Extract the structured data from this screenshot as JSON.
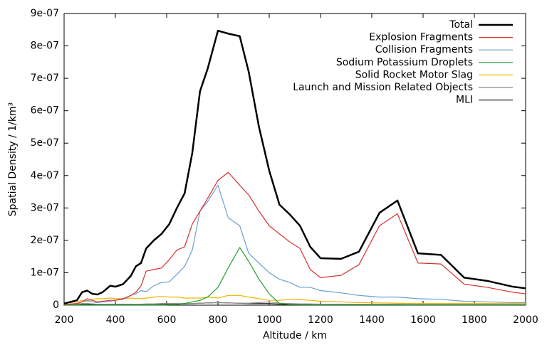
{
  "chart_data": {
    "type": "line",
    "xlabel": "Altitude / km",
    "ylabel": "Spatial Density / 1/km³",
    "x": [
      200,
      250,
      270,
      290,
      310,
      330,
      350,
      380,
      400,
      430,
      460,
      480,
      500,
      520,
      550,
      580,
      610,
      640,
      670,
      700,
      730,
      760,
      800,
      840,
      885,
      920,
      960,
      1000,
      1040,
      1080,
      1120,
      1160,
      1200,
      1280,
      1350,
      1430,
      1500,
      1580,
      1670,
      1760,
      1850,
      1950,
      2000
    ],
    "xlim": [
      200,
      2000
    ],
    "xticks": [
      200,
      400,
      600,
      800,
      1000,
      1200,
      1400,
      1600,
      1800,
      2000
    ],
    "ylim": [
      0,
      9e-07
    ],
    "yticks": [
      0,
      {
        "value": 1e-07,
        "label": "1e-07"
      },
      {
        "value": 2e-07,
        "label": "2e-07"
      },
      {
        "value": 3e-07,
        "label": "3e-07"
      },
      {
        "value": 4e-07,
        "label": "4e-07"
      },
      {
        "value": 5e-07,
        "label": "5e-07"
      },
      {
        "value": 6e-07,
        "label": "6e-07"
      },
      {
        "value": 7e-07,
        "label": "7e-07"
      },
      {
        "value": 8e-07,
        "label": "8e-07"
      },
      {
        "value": 9e-07,
        "label": "9e-07"
      }
    ],
    "legend": "top-right",
    "series": [
      {
        "name": "Total",
        "color": "#000000",
        "line_width": 2.5,
        "values": [
          5e-09,
          1.5e-08,
          4e-08,
          4.5e-08,
          3.5e-08,
          3.3e-08,
          4e-08,
          6e-08,
          5.7e-08,
          6.5e-08,
          9e-08,
          1.2e-07,
          1.3e-07,
          1.75e-07,
          2e-07,
          2.2e-07,
          2.5e-07,
          3e-07,
          3.45e-07,
          4.7e-07,
          6.6e-07,
          7.3e-07,
          8.47e-07,
          8.38e-07,
          8.3e-07,
          7.2e-07,
          5.5e-07,
          4.15e-07,
          3.1e-07,
          2.8e-07,
          2.45e-07,
          1.8e-07,
          1.45e-07,
          1.43e-07,
          1.65e-07,
          2.85e-07,
          3.23e-07,
          1.6e-07,
          1.55e-07,
          8.5e-08,
          7.5e-08,
          5.7e-08,
          5.2e-08
        ]
      },
      {
        "name": "Explosion Fragments",
        "color": "#d9302c",
        "line_width": 1.2,
        "values": [
          2e-09,
          5e-09,
          1e-08,
          2e-08,
          1.5e-08,
          1e-08,
          1.2e-08,
          1.5e-08,
          1.5e-08,
          2e-08,
          3e-08,
          4e-08,
          6e-08,
          1.05e-07,
          1.1e-07,
          1.15e-07,
          1.4e-07,
          1.7e-07,
          1.8e-07,
          2.5e-07,
          2.9e-07,
          3.3e-07,
          3.85e-07,
          4.1e-07,
          3.7e-07,
          3.4e-07,
          2.9e-07,
          2.45e-07,
          2.2e-07,
          1.95e-07,
          1.75e-07,
          1.1e-07,
          8.5e-08,
          9.2e-08,
          1.25e-07,
          2.45e-07,
          2.82e-07,
          1.3e-07,
          1.27e-07,
          6.5e-08,
          5.5e-08,
          4e-08,
          3.5e-08
        ]
      },
      {
        "name": "Collision Fragments",
        "color": "#6a9fcf",
        "line_width": 1.2,
        "values": [
          2e-09,
          5e-09,
          1e-08,
          1.5e-08,
          1e-08,
          8e-09,
          1e-08,
          1.2e-08,
          1.5e-08,
          1.8e-08,
          3e-08,
          3.5e-08,
          4.5e-08,
          4.2e-08,
          6e-08,
          7e-08,
          7.2e-08,
          9.5e-08,
          1.2e-07,
          1.7e-07,
          2.9e-07,
          3.2e-07,
          3.7e-07,
          2.7e-07,
          2.45e-07,
          1.6e-07,
          1.3e-07,
          1e-07,
          8e-08,
          7e-08,
          5.5e-08,
          5.5e-08,
          4.5e-08,
          3.8e-08,
          3e-08,
          2.5e-08,
          2.5e-08,
          2e-08,
          1.8e-08,
          1.2e-08,
          1e-08,
          8e-09,
          8e-09
        ]
      },
      {
        "name": "Sodium Potassium Droplets",
        "color": "#1f9e2c",
        "line_width": 1.2,
        "values": [
          0,
          0,
          0,
          0,
          0,
          0,
          0,
          0,
          0,
          0,
          0,
          0,
          0,
          0,
          0,
          0,
          1e-09,
          2e-09,
          5e-09,
          1e-08,
          1.5e-08,
          2.5e-08,
          5.5e-08,
          1.15e-07,
          1.78e-07,
          1.35e-07,
          8e-08,
          3.5e-08,
          5e-09,
          2e-09,
          1e-09,
          1e-09,
          1e-09,
          1e-09,
          1e-09,
          1e-09,
          1e-09,
          1e-09,
          1e-09,
          1e-09,
          1e-09,
          1e-09,
          1e-09
        ]
      },
      {
        "name": "Solid Rocket Motor Slag",
        "color": "#f0b400",
        "line_width": 1.2,
        "values": [
          5e-09,
          1e-08,
          1.5e-08,
          1e-08,
          1.8e-08,
          2e-08,
          2e-08,
          2.2e-08,
          2e-08,
          2e-08,
          2.2e-08,
          2e-08,
          2e-08,
          2.2e-08,
          2.5e-08,
          2.7e-08,
          2.5e-08,
          2.5e-08,
          2.2e-08,
          2.2e-08,
          2.2e-08,
          2.5e-08,
          2.2e-08,
          3e-08,
          3e-08,
          2.5e-08,
          2e-08,
          1.5e-08,
          1.5e-08,
          1.8e-08,
          1.7e-08,
          1.5e-08,
          1.2e-08,
          1e-08,
          8e-09,
          7e-09,
          6e-09,
          5e-09,
          5e-09,
          5e-09,
          5e-09,
          5e-09,
          5e-09
        ]
      },
      {
        "name": "Launch and Mission Related Objects",
        "color": "#8a8a8a",
        "line_width": 1.2,
        "values": [
          2e-09,
          3e-09,
          5e-09,
          5e-09,
          4e-09,
          3e-09,
          3e-09,
          3e-09,
          3e-09,
          3e-09,
          3e-09,
          3e-09,
          3e-09,
          4e-09,
          4e-09,
          5e-09,
          5e-09,
          5e-09,
          5e-09,
          5e-09,
          6e-09,
          7e-09,
          8e-09,
          7e-09,
          6e-09,
          6e-09,
          8e-09,
          1e-08,
          6e-09,
          5e-09,
          4e-09,
          4e-09,
          3e-09,
          3e-09,
          3e-09,
          3e-09,
          3e-09,
          2e-09,
          2e-09,
          2e-09,
          2e-09,
          2e-09,
          2e-09
        ]
      },
      {
        "name": "MLI",
        "color": "#222222",
        "line_width": 1.2,
        "values": [
          1e-09,
          1e-09,
          2e-09,
          2e-09,
          2e-09,
          2e-09,
          2e-09,
          2e-09,
          2e-09,
          2e-09,
          2e-09,
          2e-09,
          2e-09,
          3e-09,
          3e-09,
          3e-09,
          3e-09,
          4e-09,
          4e-09,
          5e-09,
          6e-09,
          7e-09,
          8e-09,
          7e-09,
          6e-09,
          5e-09,
          5e-09,
          5e-09,
          3e-09,
          2e-09,
          2e-09,
          2e-09,
          1e-09,
          1e-09,
          1e-09,
          1e-09,
          1e-09,
          1e-09,
          1e-09,
          1e-09,
          1e-09,
          1e-09,
          1e-09
        ]
      }
    ]
  }
}
